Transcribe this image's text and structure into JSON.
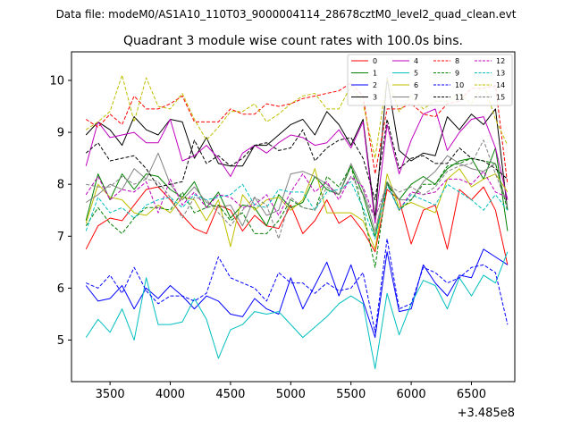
{
  "header": {
    "data_file": "Data file: modeM0/AS1A10_110T03_9000004114_28678cztM0_level2_quad_clean.evt"
  },
  "chart_data": {
    "type": "line",
    "title": "Quadrant 3 module wise count rates with 100.0s bins.",
    "xlabel": "",
    "ylabel": "",
    "x_offset_label": "+3.485e8",
    "xlim": [
      3180,
      6860
    ],
    "ylim": [
      4.2,
      10.55
    ],
    "x_ticks": [
      3500,
      4000,
      4500,
      5000,
      5500,
      6000,
      6500
    ],
    "y_ticks": [
      5,
      6,
      7,
      8,
      9,
      10
    ],
    "grid": false,
    "legend_position": "top-right",
    "x": [
      3300,
      3400,
      3500,
      3600,
      3700,
      3800,
      3900,
      4000,
      4100,
      4200,
      4300,
      4400,
      4500,
      4600,
      4700,
      4800,
      4900,
      5000,
      5100,
      5200,
      5300,
      5400,
      5500,
      5600,
      5700,
      5800,
      5900,
      6000,
      6100,
      6200,
      6300,
      6400,
      6500,
      6600,
      6700,
      6800
    ],
    "series": [
      {
        "name": "0",
        "color": "#ff0000",
        "dash": "solid",
        "values": [
          6.75,
          7.2,
          7.35,
          7.3,
          7.6,
          7.9,
          7.95,
          7.7,
          7.4,
          7.15,
          7.05,
          7.6,
          7.5,
          7.1,
          7.4,
          7.2,
          7.15,
          7.6,
          7.05,
          7.3,
          7.7,
          7.25,
          7.4,
          7.1,
          6.7,
          7.9,
          7.7,
          6.85,
          7.5,
          7.6,
          6.75,
          7.9,
          7.7,
          7.95,
          7.5,
          6.45
        ]
      },
      {
        "name": "1",
        "color": "#008000",
        "dash": "solid",
        "values": [
          7.3,
          8.2,
          7.7,
          8.2,
          7.9,
          8.2,
          8.15,
          7.9,
          7.75,
          8.05,
          7.55,
          7.85,
          7.35,
          7.6,
          7.55,
          7.2,
          7.8,
          7.55,
          7.65,
          8.15,
          7.9,
          7.8,
          8.35,
          7.8,
          7.0,
          8.0,
          7.7,
          8.0,
          8.15,
          8.0,
          8.3,
          8.45,
          8.5,
          8.1,
          8.7,
          7.1
        ]
      },
      {
        "name": "2",
        "color": "#0000ff",
        "dash": "solid",
        "values": [
          6.05,
          5.75,
          5.8,
          6.05,
          5.6,
          6.0,
          5.8,
          6.05,
          5.85,
          5.6,
          5.85,
          5.75,
          5.5,
          5.45,
          5.8,
          5.6,
          5.5,
          6.2,
          5.6,
          6.05,
          6.5,
          5.85,
          6.45,
          5.75,
          5.05,
          6.7,
          5.55,
          5.6,
          6.45,
          6.1,
          5.85,
          6.25,
          6.2,
          6.75,
          6.6,
          6.45
        ]
      },
      {
        "name": "3",
        "color": "#000000",
        "dash": "solid",
        "values": [
          8.95,
          9.2,
          9.05,
          8.75,
          9.3,
          9.05,
          8.95,
          9.25,
          9.2,
          8.5,
          8.9,
          8.4,
          8.35,
          8.35,
          8.75,
          8.75,
          8.95,
          9.15,
          9.25,
          8.95,
          9.4,
          9.15,
          8.75,
          9.25,
          7.35,
          10.05,
          8.65,
          8.45,
          8.6,
          8.55,
          9.3,
          9.05,
          9.35,
          9.15,
          9.45,
          7.5
        ]
      },
      {
        "name": "4",
        "color": "#bf00bf",
        "dash": "solid",
        "values": [
          8.35,
          9.2,
          8.9,
          8.95,
          9.0,
          8.8,
          8.8,
          9.25,
          8.45,
          8.55,
          8.75,
          8.5,
          8.15,
          8.6,
          8.75,
          8.6,
          8.8,
          8.95,
          8.9,
          8.75,
          8.8,
          9.05,
          8.7,
          9.2,
          7.25,
          9.15,
          8.2,
          8.85,
          9.35,
          9.45,
          8.65,
          9.0,
          9.25,
          9.3,
          8.7,
          7.7
        ]
      },
      {
        "name": "5",
        "color": "#00bfbf",
        "dash": "solid",
        "values": [
          5.05,
          5.4,
          5.15,
          5.6,
          5.0,
          6.2,
          5.3,
          5.3,
          5.35,
          5.8,
          5.4,
          4.65,
          5.2,
          5.3,
          5.55,
          5.5,
          5.55,
          5.3,
          5.05,
          5.25,
          5.45,
          5.7,
          5.85,
          5.7,
          4.45,
          5.9,
          5.1,
          5.7,
          6.15,
          6.05,
          5.6,
          6.2,
          5.85,
          6.25,
          6.1,
          6.7
        ]
      },
      {
        "name": "6",
        "color": "#bfbf00",
        "dash": "solid",
        "values": [
          7.25,
          8.0,
          7.75,
          7.7,
          7.45,
          7.4,
          7.6,
          7.45,
          7.75,
          7.7,
          7.3,
          7.7,
          6.8,
          7.8,
          7.5,
          7.7,
          7.75,
          7.5,
          7.7,
          8.3,
          7.45,
          7.45,
          7.45,
          7.3,
          6.75,
          8.2,
          7.55,
          7.65,
          7.55,
          7.45,
          8.1,
          8.3,
          7.95,
          8.1,
          8.2,
          7.85
        ]
      },
      {
        "name": "7",
        "color": "#808080",
        "dash": "solid",
        "values": [
          7.65,
          7.8,
          8.0,
          7.9,
          8.3,
          8.1,
          8.6,
          8.0,
          7.7,
          7.95,
          7.65,
          7.55,
          7.6,
          7.2,
          7.75,
          7.4,
          7.5,
          8.2,
          8.25,
          8.15,
          8.0,
          7.8,
          8.4,
          7.9,
          7.1,
          8.05,
          7.7,
          7.7,
          8.05,
          8.25,
          8.55,
          8.4,
          8.3,
          8.25,
          8.4,
          7.55
        ]
      },
      {
        "name": "8",
        "color": "#ff0000",
        "dash": "dash",
        "values": [
          9.25,
          9.1,
          9.35,
          9.15,
          9.7,
          9.45,
          9.45,
          9.55,
          9.7,
          9.2,
          9.2,
          9.2,
          9.45,
          9.35,
          9.35,
          9.55,
          9.5,
          9.55,
          9.65,
          9.7,
          9.75,
          9.8,
          9.95,
          9.7,
          8.2,
          9.45,
          9.45,
          9.55,
          9.35,
          9.3,
          9.55,
          9.6,
          9.85,
          9.85,
          9.9,
          8.0
        ]
      },
      {
        "name": "9",
        "color": "#008000",
        "dash": "dash",
        "values": [
          7.2,
          7.55,
          7.25,
          7.05,
          7.35,
          7.55,
          7.55,
          7.5,
          7.85,
          7.45,
          7.55,
          7.6,
          7.3,
          7.45,
          7.05,
          7.05,
          7.3,
          7.7,
          7.55,
          7.5,
          8.15,
          7.95,
          8.35,
          7.5,
          6.4,
          8.05,
          7.5,
          7.7,
          8.0,
          8.0,
          8.35,
          8.4,
          8.5,
          8.45,
          8.4,
          7.5
        ]
      },
      {
        "name": "10",
        "color": "#0000ff",
        "dash": "dash",
        "values": [
          6.1,
          6.0,
          6.25,
          5.9,
          6.4,
          5.95,
          5.7,
          5.85,
          5.85,
          5.75,
          5.9,
          6.6,
          6.2,
          6.1,
          6.0,
          5.75,
          6.3,
          6.1,
          6.1,
          5.9,
          6.1,
          5.95,
          6.0,
          6.3,
          5.15,
          6.95,
          5.6,
          5.7,
          6.4,
          6.3,
          6.1,
          6.2,
          6.4,
          6.45,
          6.3,
          5.3
        ]
      },
      {
        "name": "11",
        "color": "#000000",
        "dash": "dash",
        "values": [
          8.6,
          8.8,
          8.45,
          8.5,
          8.55,
          8.3,
          7.95,
          8.0,
          8.05,
          8.85,
          8.4,
          8.55,
          8.35,
          8.5,
          8.75,
          8.8,
          8.65,
          8.7,
          9.05,
          8.45,
          8.7,
          8.85,
          8.9,
          8.5,
          7.7,
          9.25,
          8.3,
          8.5,
          8.55,
          8.4,
          8.4,
          8.7,
          8.5,
          8.45,
          8.3,
          8.1
        ]
      },
      {
        "name": "12",
        "color": "#bf00bf",
        "dash": "dash",
        "values": [
          7.8,
          8.15,
          7.7,
          7.9,
          7.85,
          8.05,
          7.45,
          8.1,
          7.6,
          7.85,
          7.55,
          7.8,
          7.75,
          7.55,
          7.6,
          7.8,
          7.4,
          7.85,
          8.2,
          7.85,
          8.05,
          7.7,
          8.15,
          7.95,
          7.35,
          8.0,
          7.5,
          7.85,
          7.8,
          7.85,
          8.1,
          8.1,
          8.0,
          8.25,
          7.85,
          7.75
        ]
      },
      {
        "name": "13",
        "color": "#00bfbf",
        "dash": "dash",
        "values": [
          7.1,
          7.75,
          7.45,
          7.55,
          7.35,
          7.6,
          7.7,
          7.75,
          7.55,
          7.8,
          7.7,
          7.75,
          7.8,
          8.0,
          7.6,
          7.55,
          7.9,
          7.85,
          7.85,
          7.5,
          7.85,
          7.9,
          8.05,
          7.55,
          6.95,
          8.0,
          7.5,
          7.8,
          7.7,
          7.6,
          8.0,
          7.85,
          7.7,
          7.5,
          7.8,
          7.5
        ]
      },
      {
        "name": "14",
        "color": "#bfbf00",
        "dash": "dash",
        "values": [
          9.05,
          9.2,
          9.4,
          10.1,
          9.2,
          10.05,
          9.5,
          9.45,
          9.75,
          9.25,
          8.85,
          9.1,
          9.4,
          9.4,
          9.55,
          9.2,
          9.35,
          9.55,
          9.7,
          9.75,
          9.45,
          9.45,
          9.9,
          9.55,
          8.5,
          10.05,
          9.4,
          9.7,
          9.45,
          9.6,
          9.6,
          9.75,
          9.55,
          9.95,
          9.25,
          8.75
        ]
      },
      {
        "name": "15",
        "color": "#808080",
        "dash": "dash",
        "values": [
          8.0,
          7.95,
          7.95,
          8.15,
          8.0,
          8.1,
          8.05,
          7.75,
          7.35,
          7.75,
          7.7,
          7.45,
          7.2,
          7.5,
          7.75,
          7.6,
          6.95,
          7.75,
          7.55,
          7.5,
          7.95,
          7.8,
          8.15,
          7.8,
          7.35,
          8.0,
          7.85,
          7.95,
          7.8,
          7.95,
          8.25,
          8.35,
          8.4,
          8.85,
          8.2,
          7.6
        ]
      }
    ]
  }
}
